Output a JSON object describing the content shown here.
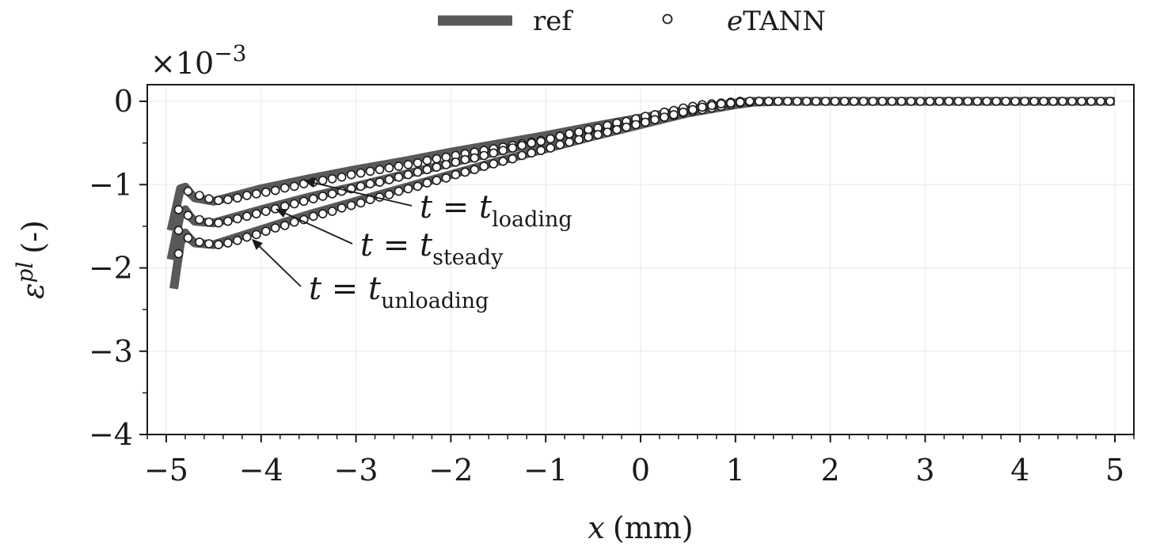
{
  "chart_data": {
    "type": "line",
    "title": "",
    "xlabel_var": "x",
    "xlabel_unit": "(mm)",
    "ylabel_var": "ε",
    "ylabel_sup": "pl",
    "ylabel_unit": "(-)",
    "y_multiplier_base": "×10",
    "y_multiplier_exp": "−3",
    "xlim": [
      -5.2,
      5.2
    ],
    "ylim": [
      -4,
      0.2
    ],
    "x_ticks": [
      -5,
      -4,
      -3,
      -2,
      -1,
      0,
      1,
      2,
      3,
      4,
      5
    ],
    "x_tick_labels": [
      "−5",
      "−4",
      "−3",
      "−2",
      "−1",
      "0",
      "1",
      "2",
      "3",
      "4",
      "5"
    ],
    "y_ticks": [
      0,
      -1,
      -2,
      -3,
      -4
    ],
    "y_tick_labels": [
      "0",
      "−1",
      "−2",
      "−3",
      "−4"
    ],
    "grid": true,
    "legend": {
      "placement": "top-center",
      "entries": [
        {
          "label": "ref",
          "style": "thick-line",
          "color": "#595959"
        },
        {
          "label_italic": "e",
          "label": "TANN",
          "style": "open-circle",
          "color": "#1a1a1a"
        }
      ]
    },
    "series": [
      {
        "name": "ref",
        "group": "loading",
        "style": "thick-line",
        "x": [
          -4.95,
          -4.85,
          -4.8,
          -4.75,
          -4.7,
          -4.5,
          -4.0,
          -3.5,
          -3.0,
          -2.5,
          -2.0,
          -1.5,
          -1.0,
          -0.5,
          0.0,
          0.5,
          1.0,
          1.2,
          1.5,
          2.0,
          3.0,
          4.0,
          5.0
        ],
        "y": [
          -1.55,
          -1.05,
          -1.03,
          -1.1,
          -1.16,
          -1.2,
          -1.05,
          -0.93,
          -0.82,
          -0.72,
          -0.61,
          -0.51,
          -0.41,
          -0.3,
          -0.2,
          -0.1,
          -0.02,
          0.0,
          0.0,
          0.0,
          0.0,
          0.0,
          0.0
        ]
      },
      {
        "name": "ref",
        "group": "steady",
        "style": "thick-line",
        "x": [
          -4.95,
          -4.85,
          -4.8,
          -4.75,
          -4.7,
          -4.5,
          -4.0,
          -3.5,
          -3.0,
          -2.5,
          -2.0,
          -1.5,
          -1.0,
          -0.5,
          0.0,
          0.5,
          1.0,
          1.2,
          1.5,
          2.0,
          3.0,
          4.0,
          5.0
        ],
        "y": [
          -1.9,
          -1.35,
          -1.3,
          -1.38,
          -1.44,
          -1.46,
          -1.3,
          -1.15,
          -1.02,
          -0.88,
          -0.74,
          -0.6,
          -0.47,
          -0.35,
          -0.23,
          -0.11,
          -0.03,
          0.0,
          0.0,
          0.0,
          0.0,
          0.0,
          0.0
        ]
      },
      {
        "name": "ref",
        "group": "unloading",
        "style": "thick-line",
        "x": [
          -4.92,
          -4.85,
          -4.8,
          -4.75,
          -4.7,
          -4.5,
          -4.0,
          -3.5,
          -3.0,
          -2.5,
          -2.0,
          -1.5,
          -1.0,
          -0.5,
          0.0,
          0.5,
          1.0,
          1.2,
          1.5,
          2.0,
          3.0,
          4.0,
          5.0
        ],
        "y": [
          -2.25,
          -1.7,
          -1.58,
          -1.65,
          -1.7,
          -1.72,
          -1.54,
          -1.36,
          -1.2,
          -1.04,
          -0.88,
          -0.72,
          -0.57,
          -0.42,
          -0.28,
          -0.14,
          -0.04,
          -0.01,
          0.0,
          0.0,
          0.0,
          0.0,
          0.0
        ]
      },
      {
        "name": "eTANN",
        "group": "loading",
        "style": "open-circle",
        "x": [
          -4.87,
          -4.77,
          -4.65,
          -4.55,
          -4.45,
          -4.35,
          -4.25,
          -4.15,
          -4.05,
          -3.95,
          -3.85,
          -3.75,
          -3.65,
          -3.55,
          -3.45,
          -3.35,
          -3.25,
          -3.15,
          -3.05,
          -2.95,
          -2.85,
          -2.75,
          -2.65,
          -2.55,
          -2.45,
          -2.35,
          -2.25,
          -2.15,
          -2.05,
          -1.95,
          -1.85,
          -1.75,
          -1.65,
          -1.55,
          -1.45,
          -1.35,
          -1.25,
          -1.15,
          -1.05,
          -0.95,
          -0.85,
          -0.75,
          -0.65,
          -0.55,
          -0.45,
          -0.35,
          -0.25,
          -0.15,
          -0.05,
          0.05,
          0.15,
          0.25,
          0.35,
          0.45,
          0.55,
          0.65,
          0.75,
          0.85,
          0.95,
          1.05,
          1.15,
          1.25,
          1.35,
          1.45,
          1.55,
          1.65,
          1.75,
          1.85,
          1.95,
          2.05,
          2.15,
          2.25,
          2.35,
          2.45,
          2.55,
          2.65,
          2.75,
          2.85,
          2.95,
          3.05,
          3.15,
          3.25,
          3.35,
          3.45,
          3.55,
          3.65,
          3.75,
          3.85,
          3.95,
          4.05,
          4.15,
          4.25,
          4.35,
          4.45,
          4.55,
          4.65,
          4.75,
          4.85,
          4.95
        ],
        "y": [
          -1.3,
          -1.08,
          -1.13,
          -1.17,
          -1.19,
          -1.18,
          -1.16,
          -1.13,
          -1.11,
          -1.09,
          -1.07,
          -1.04,
          -1.02,
          -0.99,
          -0.97,
          -0.95,
          -0.93,
          -0.91,
          -0.88,
          -0.86,
          -0.84,
          -0.82,
          -0.8,
          -0.78,
          -0.76,
          -0.74,
          -0.71,
          -0.69,
          -0.67,
          -0.65,
          -0.63,
          -0.61,
          -0.59,
          -0.57,
          -0.55,
          -0.53,
          -0.51,
          -0.49,
          -0.47,
          -0.45,
          -0.42,
          -0.4,
          -0.38,
          -0.36,
          -0.34,
          -0.32,
          -0.29,
          -0.27,
          -0.25,
          -0.23,
          -0.21,
          -0.19,
          -0.17,
          -0.14,
          -0.12,
          -0.1,
          -0.08,
          -0.06,
          -0.04,
          -0.02,
          -0.01,
          0.0,
          0.0,
          0.0,
          0.0,
          0.0,
          0.0,
          0.0,
          0.0,
          0.0,
          0.0,
          0.0,
          0.0,
          0.0,
          0.0,
          0.0,
          0.0,
          0.0,
          0.0,
          0.0,
          0.0,
          0.0,
          0.0,
          0.0,
          0.0,
          0.0,
          0.0,
          0.0,
          0.0,
          0.0,
          0.0,
          0.0,
          0.0,
          0.0,
          0.0,
          0.0,
          0.0,
          0.0,
          0.0
        ]
      },
      {
        "name": "eTANN",
        "group": "steady",
        "style": "open-circle",
        "x": [
          -4.87,
          -4.77,
          -4.65,
          -4.55,
          -4.45,
          -4.35,
          -4.25,
          -4.15,
          -4.05,
          -3.95,
          -3.85,
          -3.75,
          -3.65,
          -3.55,
          -3.45,
          -3.35,
          -3.25,
          -3.15,
          -3.05,
          -2.95,
          -2.85,
          -2.75,
          -2.65,
          -2.55,
          -2.45,
          -2.35,
          -2.25,
          -2.15,
          -2.05,
          -1.95,
          -1.85,
          -1.75,
          -1.65,
          -1.55,
          -1.45,
          -1.35,
          -1.25,
          -1.15,
          -1.05,
          -0.95,
          -0.85,
          -0.75,
          -0.65,
          -0.55,
          -0.45,
          -0.35,
          -0.25,
          -0.15,
          -0.05,
          0.05,
          0.15,
          0.25,
          0.35,
          0.45,
          0.55,
          0.65,
          0.75,
          0.85,
          0.95,
          1.05,
          1.15,
          1.25,
          1.35
        ],
        "y": [
          -1.55,
          -1.37,
          -1.42,
          -1.45,
          -1.46,
          -1.44,
          -1.41,
          -1.38,
          -1.35,
          -1.32,
          -1.29,
          -1.26,
          -1.23,
          -1.2,
          -1.17,
          -1.14,
          -1.11,
          -1.08,
          -1.05,
          -1.02,
          -0.99,
          -0.97,
          -0.94,
          -0.91,
          -0.88,
          -0.85,
          -0.82,
          -0.79,
          -0.76,
          -0.73,
          -0.7,
          -0.68,
          -0.65,
          -0.62,
          -0.59,
          -0.56,
          -0.53,
          -0.5,
          -0.48,
          -0.45,
          -0.42,
          -0.39,
          -0.37,
          -0.34,
          -0.32,
          -0.29,
          -0.26,
          -0.24,
          -0.21,
          -0.18,
          -0.16,
          -0.13,
          -0.11,
          -0.08,
          -0.06,
          -0.04,
          -0.03,
          -0.02,
          -0.01,
          0.0,
          0.0,
          0.0,
          0.0
        ]
      },
      {
        "name": "eTANN",
        "group": "unloading",
        "style": "open-circle",
        "x": [
          -4.87,
          -4.77,
          -4.65,
          -4.55,
          -4.45,
          -4.35,
          -4.25,
          -4.15,
          -4.05,
          -3.95,
          -3.85,
          -3.75,
          -3.65,
          -3.55,
          -3.45,
          -3.35,
          -3.25,
          -3.15,
          -3.05,
          -2.95,
          -2.85,
          -2.75,
          -2.65,
          -2.55,
          -2.45,
          -2.35,
          -2.25,
          -2.15,
          -2.05,
          -1.95,
          -1.85,
          -1.75,
          -1.65,
          -1.55,
          -1.45,
          -1.35,
          -1.25,
          -1.15,
          -1.05,
          -0.95,
          -0.85,
          -0.75,
          -0.65,
          -0.55,
          -0.45,
          -0.35,
          -0.25,
          -0.15,
          -0.05,
          0.05,
          0.15,
          0.25,
          0.35,
          0.45,
          0.55,
          0.65,
          0.75,
          0.85,
          0.95,
          1.05,
          1.15,
          1.25,
          1.35
        ],
        "y": [
          -1.83,
          -1.64,
          -1.69,
          -1.71,
          -1.72,
          -1.7,
          -1.67,
          -1.63,
          -1.6,
          -1.56,
          -1.52,
          -1.49,
          -1.45,
          -1.42,
          -1.38,
          -1.35,
          -1.32,
          -1.28,
          -1.25,
          -1.22,
          -1.18,
          -1.15,
          -1.12,
          -1.08,
          -1.05,
          -1.02,
          -0.98,
          -0.95,
          -0.92,
          -0.88,
          -0.85,
          -0.82,
          -0.78,
          -0.75,
          -0.72,
          -0.69,
          -0.65,
          -0.62,
          -0.59,
          -0.56,
          -0.52,
          -0.49,
          -0.46,
          -0.43,
          -0.4,
          -0.37,
          -0.34,
          -0.31,
          -0.28,
          -0.25,
          -0.22,
          -0.19,
          -0.16,
          -0.13,
          -0.1,
          -0.07,
          -0.05,
          -0.03,
          -0.02,
          -0.01,
          0.0,
          0.0,
          0.0
        ]
      }
    ],
    "annotations": [
      {
        "main": "t = t",
        "sub": "loading",
        "arrow_to": [
          -3.55,
          -0.95
        ]
      },
      {
        "main": "t = t",
        "sub": "steady",
        "arrow_to": [
          -3.85,
          -1.29
        ]
      },
      {
        "main": "t = t",
        "sub": "unloading",
        "arrow_to": [
          -4.1,
          -1.65
        ]
      }
    ]
  }
}
